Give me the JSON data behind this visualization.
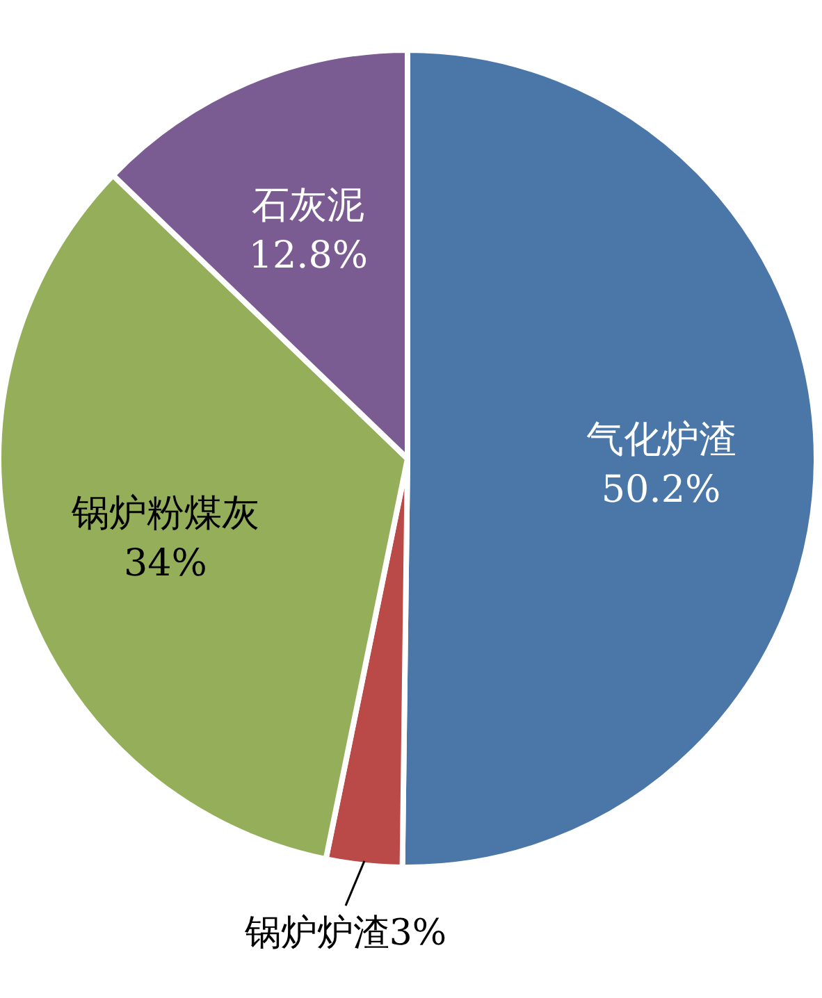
{
  "chart_data": {
    "type": "pie",
    "categories": [
      "气化炉渣",
      "锅炉炉渣",
      "锅炉粉煤灰",
      "石灰泥"
    ],
    "values": [
      50.2,
      3,
      34,
      12.8
    ],
    "colors": [
      "#4a76a8",
      "#b94a48",
      "#94ae5a",
      "#7a5c93"
    ],
    "value_labels": [
      "50.2%",
      "3%",
      "34%",
      "12.8%"
    ]
  }
}
